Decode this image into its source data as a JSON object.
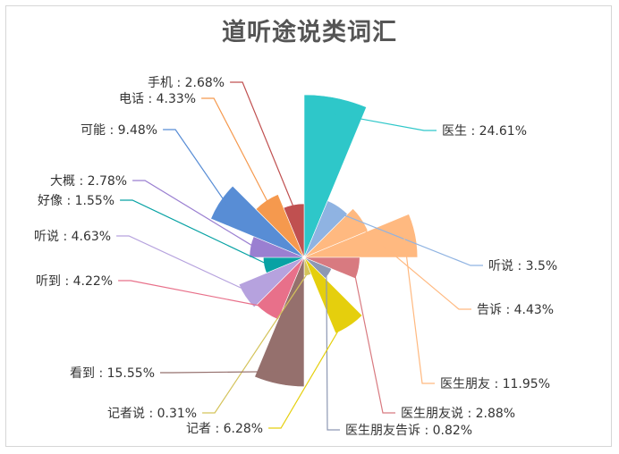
{
  "chart_data": {
    "type": "pie",
    "subtype": "rose",
    "title": "道听途说类词汇",
    "unit": "%",
    "slices": [
      {
        "label": "医生",
        "value": 24.61,
        "display": "医生 : 24.61%",
        "color": "#2ec7c9"
      },
      {
        "label": "听说",
        "value": 3.5,
        "display": "听说 : 3.5%",
        "color": "#8fb3e2"
      },
      {
        "label": "告诉",
        "value": 4.43,
        "display": "告诉 : 4.43%",
        "color": "#ffb980"
      },
      {
        "label": "医生朋友",
        "value": 11.95,
        "display": "医生朋友 : 11.95%",
        "color": "#ffb980"
      },
      {
        "label": "医生朋友说",
        "value": 2.88,
        "display": "医生朋友说 : 2.88%",
        "color": "#d87a80"
      },
      {
        "label": "医生朋友告诉",
        "value": 0.82,
        "display": "医生朋友告诉 : 0.82%",
        "color": "#8d98b3"
      },
      {
        "label": "记者",
        "value": 6.28,
        "display": "记者 : 6.28%",
        "color": "#e5cf0d"
      },
      {
        "label": "记者说",
        "value": 0.31,
        "display": "记者说 : 0.31%",
        "color": "#d4c35a"
      },
      {
        "label": "看到",
        "value": 15.55,
        "display": "看到 : 15.55%",
        "color": "#95706d"
      },
      {
        "label": "听到",
        "value": 4.22,
        "display": "听到 : 4.22%",
        "color": "#e8708a"
      },
      {
        "label": "听说",
        "value": 4.63,
        "display": "听说 : 4.63%",
        "color": "#b6a2de"
      },
      {
        "label": "好像",
        "value": 1.55,
        "display": "好像 : 1.55%",
        "color": "#07a2a4"
      },
      {
        "label": "大概",
        "value": 2.78,
        "display": "大概 : 2.78%",
        "color": "#9a7fd1"
      },
      {
        "label": "可能",
        "value": 9.48,
        "display": "可能 : 9.48%",
        "color": "#588dd5"
      },
      {
        "label": "电话",
        "value": 4.33,
        "display": "电话 : 4.33%",
        "color": "#f5994e"
      },
      {
        "label": "手机",
        "value": 2.68,
        "display": "手机 : 2.68%",
        "color": "#c05050"
      }
    ]
  }
}
